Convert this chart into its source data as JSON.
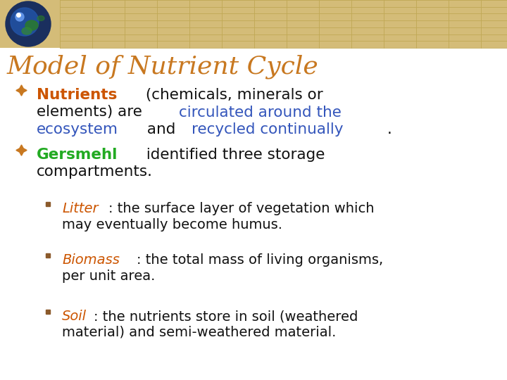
{
  "title": "Model of Nutrient Cycle",
  "title_color": "#C87820",
  "bg_color": "#FFFFFF",
  "header_bg_color": "#D4BC78",
  "header_grid_color": "#C0A855",
  "bullet_color_l1": "#C87820",
  "bullet_color_l2": "#8B5A2B",
  "font_size_title": 26,
  "font_size_main": 15.5,
  "font_size_sub": 14,
  "globe_dark": "#1a2f5e",
  "globe_blue": "#2255aa",
  "globe_bright": "#6699ee",
  "globe_green1": "#2a7a2a",
  "globe_green2": "#338833",
  "lines": [
    {
      "level": 1,
      "segments": [
        {
          "text": "Nutrients",
          "color": "#CC5500",
          "bold": true
        },
        {
          "text": " (chemicals, minerals or\nelements) are ",
          "color": "#111111",
          "bold": false
        },
        {
          "text": "circulated around the\necosystem",
          "color": "#3355BB",
          "bold": false
        },
        {
          "text": " and ",
          "color": "#111111",
          "bold": false
        },
        {
          "text": "recycled continually",
          "color": "#3355BB",
          "bold": false
        },
        {
          "text": ".",
          "color": "#111111",
          "bold": false
        }
      ]
    },
    {
      "level": 1,
      "segments": [
        {
          "text": "Gersmehl",
          "color": "#22AA22",
          "bold": true
        },
        {
          "text": " identified three storage\ncompartments.",
          "color": "#111111",
          "bold": false
        }
      ]
    },
    {
      "level": 2,
      "segments": [
        {
          "text": "Litter",
          "color": "#CC5500",
          "bold": false,
          "italic": true
        },
        {
          "text": ": the surface layer of vegetation which\nmay eventually become humus.",
          "color": "#111111",
          "bold": false
        }
      ]
    },
    {
      "level": 2,
      "segments": [
        {
          "text": "Biomass",
          "color": "#CC5500",
          "bold": false,
          "italic": true
        },
        {
          "text": ": the total mass of living organisms,\nper unit area.",
          "color": "#111111",
          "bold": false
        }
      ]
    },
    {
      "level": 2,
      "segments": [
        {
          "text": "Soil",
          "color": "#CC5500",
          "bold": false,
          "italic": true
        },
        {
          "text": ": the nutrients store in soil (weathered\nmaterial) and semi-weathered material.",
          "color": "#111111",
          "bold": false
        }
      ]
    }
  ]
}
